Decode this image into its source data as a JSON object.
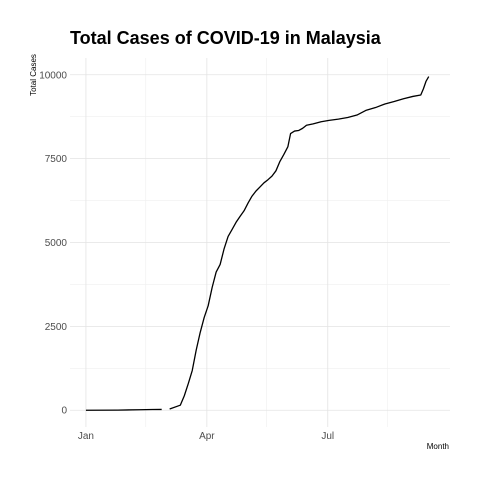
{
  "chart_data": {
    "type": "line",
    "title": "Total Cases of COVID-19 in Malaysia",
    "xlabel": "Month",
    "ylabel": "Total Cases",
    "x_ticks": [
      {
        "date": "2020-01-01",
        "label": "Jan"
      },
      {
        "date": "2020-04-01",
        "label": "Apr"
      },
      {
        "date": "2020-07-01",
        "label": "Jul"
      }
    ],
    "y_ticks": [
      0,
      2500,
      5000,
      7500,
      10000
    ],
    "xlim": [
      "2019-12-20",
      "2020-10-01"
    ],
    "ylim": [
      -500,
      10500
    ],
    "grid": true,
    "series": [
      {
        "segments": [
          [
            [
              "2020-01-01",
              0
            ],
            [
              "2020-01-25",
              4
            ],
            [
              "2020-02-10",
              15
            ],
            [
              "2020-02-20",
              22
            ],
            [
              "2020-02-27",
              23
            ]
          ],
          [
            [
              "2020-03-04",
              36
            ],
            [
              "2020-03-12",
              150
            ],
            [
              "2020-03-15",
              428
            ],
            [
              "2020-03-18",
              790
            ],
            [
              "2020-03-21",
              1183
            ],
            [
              "2020-03-24",
              1796
            ],
            [
              "2020-03-27",
              2320
            ],
            [
              "2020-03-30",
              2766
            ],
            [
              "2020-04-02",
              3116
            ],
            [
              "2020-04-05",
              3662
            ],
            [
              "2020-04-08",
              4119
            ],
            [
              "2020-04-11",
              4346
            ],
            [
              "2020-04-14",
              4817
            ],
            [
              "2020-04-17",
              5182
            ],
            [
              "2020-04-20",
              5389
            ],
            [
              "2020-04-23",
              5603
            ],
            [
              "2020-04-26",
              5780
            ],
            [
              "2020-04-29",
              5945
            ],
            [
              "2020-05-02",
              6176
            ],
            [
              "2020-05-05",
              6383
            ],
            [
              "2020-05-08",
              6535
            ],
            [
              "2020-05-11",
              6656
            ],
            [
              "2020-05-14",
              6779
            ],
            [
              "2020-05-17",
              6872
            ],
            [
              "2020-05-20",
              6978
            ],
            [
              "2020-05-23",
              7137
            ],
            [
              "2020-05-26",
              7417
            ],
            [
              "2020-05-29",
              7629
            ],
            [
              "2020-06-01",
              7857
            ],
            [
              "2020-06-03",
              8247
            ],
            [
              "2020-06-06",
              8322
            ],
            [
              "2020-06-09",
              8338
            ],
            [
              "2020-06-12",
              8402
            ],
            [
              "2020-06-15",
              8494
            ],
            [
              "2020-06-20",
              8535
            ],
            [
              "2020-06-26",
              8600
            ],
            [
              "2020-07-02",
              8640
            ],
            [
              "2020-07-09",
              8677
            ],
            [
              "2020-07-16",
              8725
            ],
            [
              "2020-07-23",
              8800
            ],
            [
              "2020-07-30",
              8943
            ],
            [
              "2020-08-06",
              9023
            ],
            [
              "2020-08-13",
              9129
            ],
            [
              "2020-08-20",
              9203
            ],
            [
              "2020-08-27",
              9285
            ],
            [
              "2020-09-03",
              9354
            ],
            [
              "2020-09-09",
              9397
            ],
            [
              "2020-09-11",
              9583
            ],
            [
              "2020-09-13",
              9810
            ],
            [
              "2020-09-15",
              9946
            ]
          ]
        ]
      }
    ]
  }
}
